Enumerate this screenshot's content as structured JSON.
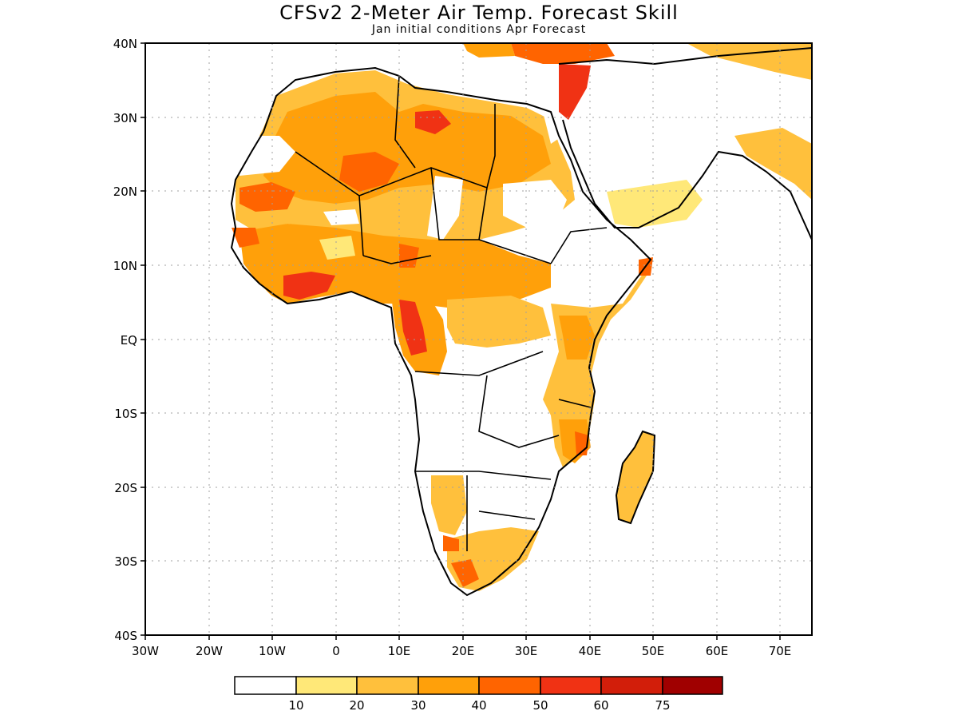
{
  "title": "CFSv2 2-Meter Air Temp. Forecast Skill",
  "subtitle": "Jan initial conditions  Apr Forecast",
  "map": {
    "lon_range": [
      -30,
      75
    ],
    "lat_range": [
      -40,
      40
    ],
    "grid": "dotted",
    "x_ticks": [
      "30W",
      "20W",
      "10W",
      "0",
      "10E",
      "20E",
      "30E",
      "40E",
      "50E",
      "60E",
      "70E"
    ],
    "y_ticks": [
      "40N",
      "30N",
      "20N",
      "10N",
      "EQ",
      "10S",
      "20S",
      "30S",
      "40S"
    ],
    "colors": {
      "c10": "#ffffff",
      "c20": "#ffe878",
      "c30": "#ffc03c",
      "c40": "#ffa00a",
      "c50": "#ff6400",
      "c60": "#f03214",
      "c75": "#d21e0a",
      "c100": "#a00000"
    }
  },
  "colorbar": {
    "labels": [
      "10",
      "20",
      "30",
      "40",
      "50",
      "60",
      "75"
    ],
    "colors": [
      "#ffffff",
      "#ffe878",
      "#ffc03c",
      "#ffa00a",
      "#ff6400",
      "#f03214",
      "#d21e0a",
      "#a00000"
    ]
  }
}
